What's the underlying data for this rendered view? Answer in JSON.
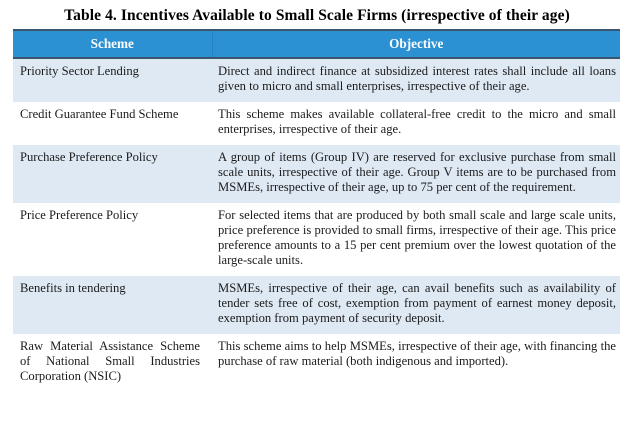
{
  "title": "Table 4. Incentives Available to Small Scale Firms (irrespective of their age)",
  "table": {
    "columns": {
      "scheme": "Scheme",
      "objective": "Objective"
    },
    "rows": [
      {
        "scheme": "Priority Sector Lending",
        "objective": "Direct and indirect finance at subsidized interest rates shall include all loans given to micro and small enterprises, irrespective of their age."
      },
      {
        "scheme": "Credit Guarantee Fund Scheme",
        "objective": "This scheme makes available collateral-free credit to the micro and small enterprises, irrespective of their age."
      },
      {
        "scheme": "Purchase Preference Policy",
        "objective": "A group of items (Group IV) are reserved for exclusive purchase from small scale units, irrespective of their age. Group V items are to be purchased from MSMEs, irrespective of their age, up to 75 per cent of the requirement."
      },
      {
        "scheme": "Price Preference Policy",
        "objective": "For selected items that are produced by both small scale and large scale units, price preference is provided to small firms, irrespective of their age. This price preference amounts to a 15 per cent premium over the lowest quotation of the large-scale units."
      },
      {
        "scheme": "Benefits in tendering",
        "objective": "MSMEs, irrespective of their age, can avail benefits such as availability of tender sets free of cost, exemption from payment of earnest money deposit, exemption from payment of security deposit."
      },
      {
        "scheme": "Raw Material Assistance Scheme of National Small Industries Corporation (NSIC)",
        "objective": "This scheme aims to help MSMEs, irrespective of their age, with financing the purchase of raw material (both indigenous and imported)."
      }
    ]
  },
  "colors": {
    "header_bg": "#2b91d2",
    "header_border": "#3a566e",
    "header_text": "#ffffff",
    "row_alt_bg": "#dfe9f4",
    "body_text": "#1b1b1b"
  }
}
